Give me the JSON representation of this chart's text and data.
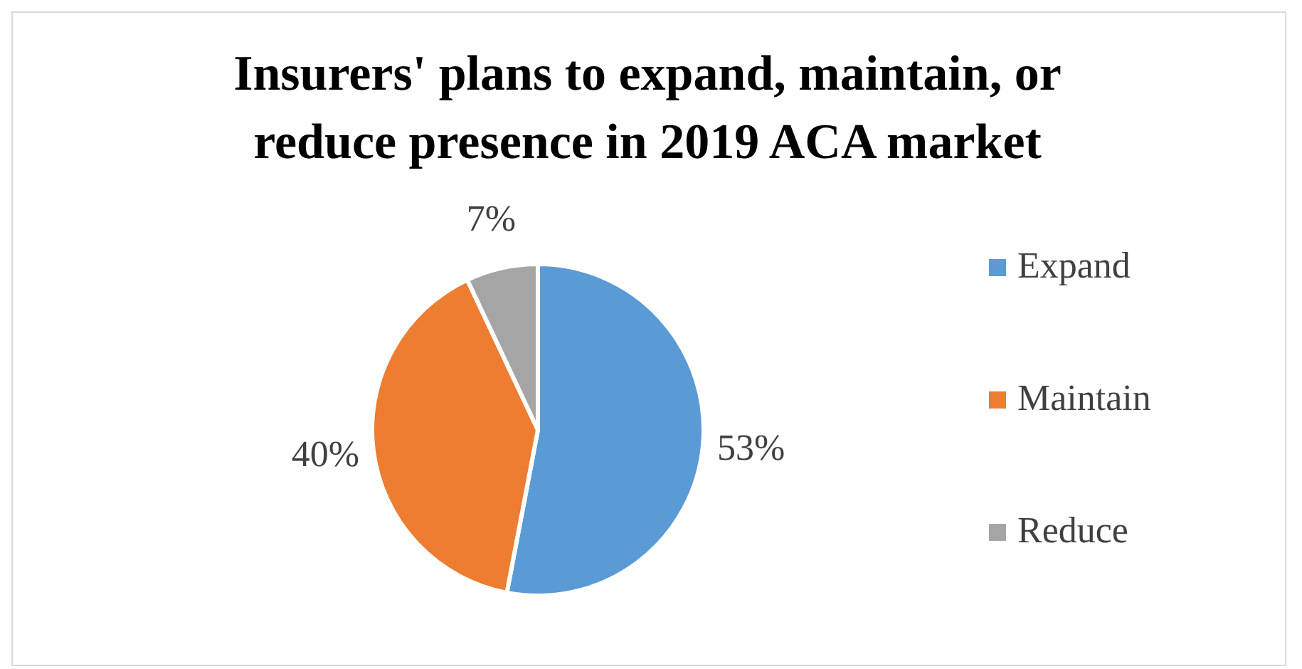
{
  "chart_data": {
    "type": "pie",
    "title": "Insurers' plans to expand, maintain, or reduce presence in 2019 ACA market",
    "categories": [
      "Expand",
      "Maintain",
      "Reduce"
    ],
    "values": [
      53,
      40,
      7
    ],
    "value_labels": [
      "53%",
      "40%",
      "7%"
    ],
    "colors": [
      "#5b9bd5",
      "#ed7d31",
      "#a5a5a5"
    ],
    "legend": "right"
  }
}
